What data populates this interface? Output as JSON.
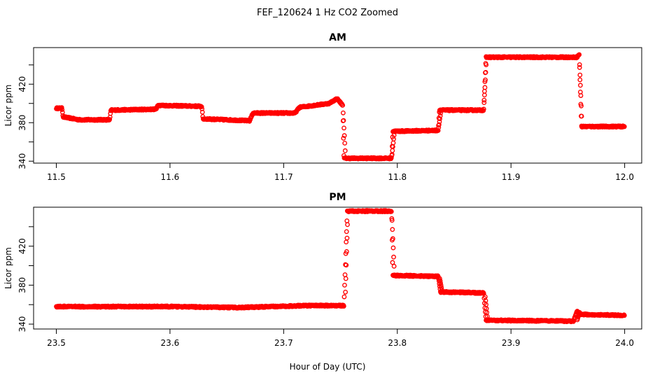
{
  "figure": {
    "suptitle": "FEF_120624  1 Hz CO2 Zoomed",
    "xlabel": "Hour of Day (UTC)"
  },
  "chart_data": [
    {
      "type": "scatter",
      "title": "AM",
      "ylabel": "Licor ppm",
      "xlim": [
        11.48,
        12.015
      ],
      "ylim": [
        338,
        458
      ],
      "xticks": [
        11.5,
        11.6,
        11.7,
        11.8,
        11.9,
        12.0
      ],
      "xtick_labels": [
        "11.5",
        "11.6",
        "11.7",
        "11.8",
        "11.9",
        "12.0"
      ],
      "yticks": [
        340,
        360,
        380,
        400,
        420,
        440
      ],
      "ytick_labels": [
        "340",
        "",
        "380",
        "",
        "420",
        ""
      ],
      "color": "#ff0000",
      "marker": "open-circle",
      "profile": [
        [
          11.5,
          395
        ],
        [
          11.505,
          395
        ],
        [
          11.506,
          386
        ],
        [
          11.52,
          383
        ],
        [
          11.547,
          383
        ],
        [
          11.548,
          393
        ],
        [
          11.588,
          394
        ],
        [
          11.589,
          398
        ],
        [
          11.628,
          397
        ],
        [
          11.629,
          384
        ],
        [
          11.67,
          382
        ],
        [
          11.673,
          390
        ],
        [
          11.71,
          390
        ],
        [
          11.714,
          396
        ],
        [
          11.74,
          400
        ],
        [
          11.747,
          405
        ],
        [
          11.752,
          398
        ],
        [
          11.753,
          343
        ],
        [
          11.795,
          343
        ],
        [
          11.796,
          371
        ],
        [
          11.836,
          372
        ],
        [
          11.837,
          393
        ],
        [
          11.876,
          393
        ],
        [
          11.878,
          448
        ],
        [
          11.958,
          448
        ],
        [
          11.96,
          451
        ],
        [
          11.962,
          376
        ],
        [
          12.0,
          376
        ]
      ],
      "transitions": [
        [
          11.752,
          398,
          343
        ],
        [
          11.795,
          343,
          371
        ],
        [
          11.836,
          372,
          393
        ],
        [
          11.876,
          393,
          448
        ],
        [
          11.96,
          451,
          376
        ]
      ]
    },
    {
      "type": "scatter",
      "title": "PM",
      "ylabel": "Licor ppm",
      "xlim": [
        23.48,
        24.015
      ],
      "ylim": [
        335,
        460
      ],
      "xticks": [
        23.5,
        23.6,
        23.7,
        23.8,
        23.9,
        24.0
      ],
      "xtick_labels": [
        "23.5",
        "23.6",
        "23.7",
        "23.8",
        "23.9",
        "24.0"
      ],
      "yticks": [
        340,
        360,
        380,
        400,
        420,
        440
      ],
      "ytick_labels": [
        "340",
        "",
        "380",
        "",
        "420",
        ""
      ],
      "color": "#ff0000",
      "marker": "open-circle",
      "profile": [
        [
          23.5,
          358
        ],
        [
          23.6,
          358
        ],
        [
          23.66,
          357
        ],
        [
          23.72,
          359
        ],
        [
          23.753,
          359
        ],
        [
          23.756,
          456
        ],
        [
          23.795,
          456
        ],
        [
          23.796,
          390
        ],
        [
          23.836,
          389
        ],
        [
          23.838,
          373
        ],
        [
          23.876,
          372
        ],
        [
          23.878,
          344
        ],
        [
          23.955,
          343
        ],
        [
          23.958,
          353
        ],
        [
          23.962,
          350
        ],
        [
          24.0,
          349
        ]
      ],
      "transitions": [
        [
          23.754,
          359,
          456
        ],
        [
          23.795,
          456,
          390
        ],
        [
          23.837,
          389,
          373
        ],
        [
          23.877,
          372,
          344
        ],
        [
          23.958,
          343,
          353
        ]
      ]
    }
  ]
}
